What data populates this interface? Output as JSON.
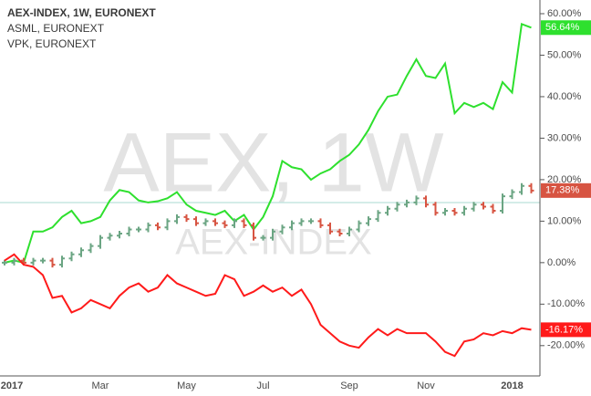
{
  "chart_data": {
    "type": "line",
    "legend": [
      "AEX-INDEX, 1W, EURONEXT",
      "ASML, EURONEXT",
      "VPK, EURONEXT"
    ],
    "watermark": "AEX, 1W",
    "watermark_symbol": "AEX-INDEX",
    "categories": [
      "2017",
      null,
      null,
      null,
      null,
      null,
      null,
      null,
      null,
      null,
      "Mar",
      null,
      null,
      null,
      null,
      null,
      null,
      null,
      null,
      "May",
      null,
      null,
      null,
      null,
      null,
      null,
      null,
      "Jul",
      null,
      null,
      null,
      null,
      null,
      null,
      null,
      null,
      "Sep",
      null,
      null,
      null,
      null,
      null,
      null,
      null,
      "Nov",
      null,
      null,
      null,
      null,
      null,
      null,
      null,
      null,
      "2018",
      null,
      null
    ],
    "series": [
      {
        "name": "ASML",
        "kind": "line",
        "color": "#2ee02e",
        "values": [
          0,
          0.5,
          0,
          7.5,
          7.5,
          8.5,
          11,
          12.5,
          9.5,
          10,
          11,
          15,
          17.5,
          17,
          15,
          14.5,
          14.8,
          15.5,
          17,
          14,
          12.5,
          12,
          11.5,
          12.5,
          10,
          11.5,
          8,
          11,
          16,
          24.5,
          23,
          22.5,
          20,
          21.5,
          22.5,
          24.5,
          26,
          28.5,
          32,
          36.5,
          40,
          40.5,
          45,
          49,
          45,
          44.5,
          48,
          36,
          38.5,
          37.5,
          38.5,
          37,
          43.5,
          41,
          57.5,
          56.64
        ],
        "value_labels": [
          null,
          null,
          null,
          null,
          null,
          null,
          null,
          null,
          null,
          null,
          null,
          null,
          null,
          null,
          null,
          null,
          null,
          null,
          null,
          null,
          null,
          null,
          null,
          null,
          null,
          null,
          null,
          null,
          null,
          null,
          null,
          null,
          null,
          null,
          null,
          null,
          null,
          null,
          null,
          null,
          null,
          null,
          null,
          null,
          null,
          null,
          null,
          null,
          null,
          null,
          null,
          null,
          null,
          null,
          null,
          "56.64%"
        ]
      },
      {
        "name": "AEX-INDEX",
        "kind": "bars",
        "color": "#6ba583",
        "down_color": "#d75442",
        "values": [
          0,
          0.5,
          0,
          0.5,
          0.5,
          -0.5,
          1,
          2,
          3,
          4,
          6,
          6.5,
          7,
          8,
          8,
          9,
          8.5,
          10,
          11,
          10.5,
          9.5,
          10,
          9.5,
          9,
          10,
          9,
          6,
          6,
          7.5,
          8.5,
          9.5,
          10,
          10,
          9,
          7.5,
          7,
          8,
          9.5,
          10.5,
          12,
          13,
          14,
          14.5,
          15.5,
          14,
          12,
          12.5,
          12,
          13,
          14,
          13.5,
          12.5,
          16,
          17,
          18.5,
          17.38
        ],
        "value_labels": [
          null,
          null,
          null,
          null,
          null,
          null,
          null,
          null,
          null,
          null,
          null,
          null,
          null,
          null,
          null,
          null,
          null,
          null,
          null,
          null,
          null,
          null,
          null,
          null,
          null,
          null,
          null,
          null,
          null,
          null,
          null,
          null,
          null,
          null,
          null,
          null,
          null,
          null,
          null,
          null,
          null,
          null,
          null,
          null,
          null,
          null,
          null,
          null,
          null,
          null,
          null,
          null,
          null,
          null,
          null,
          "17.38%"
        ]
      },
      {
        "name": "VPK",
        "kind": "line",
        "color": "#ff1a1a",
        "values": [
          0.5,
          2,
          -0.5,
          -1,
          -3,
          -8.5,
          -8,
          -12,
          -11,
          -9,
          -10,
          -11,
          -8,
          -6,
          -5,
          -7,
          -6,
          -3,
          -5,
          -6,
          -7,
          -8,
          -7.5,
          -3,
          -4,
          -8,
          -7,
          -5.5,
          -7,
          -6,
          -8,
          -6.5,
          -10,
          -15,
          -17,
          -19,
          -20,
          -20.5,
          -18,
          -16,
          -17.5,
          -16,
          -17,
          -17,
          -17,
          -19,
          -21.5,
          -22.5,
          -19,
          -18.5,
          -17,
          -17.5,
          -16.5,
          -17,
          -15.8,
          -16.17
        ],
        "value_labels": [
          null,
          null,
          null,
          null,
          null,
          null,
          null,
          null,
          null,
          null,
          null,
          null,
          null,
          null,
          null,
          null,
          null,
          null,
          null,
          null,
          null,
          null,
          null,
          null,
          null,
          null,
          null,
          null,
          null,
          null,
          null,
          null,
          null,
          null,
          null,
          null,
          null,
          null,
          null,
          null,
          null,
          null,
          null,
          null,
          null,
          null,
          null,
          null,
          null,
          null,
          null,
          null,
          null,
          null,
          null,
          "-16.17%"
        ]
      }
    ],
    "ylim": [
      -27.3,
      63.3
    ],
    "yticks": [
      {
        "value": 60,
        "label": "60.00%"
      },
      {
        "value": 50,
        "label": "50.00%"
      },
      {
        "value": 40,
        "label": "40.00%"
      },
      {
        "value": 30,
        "label": "30.00%"
      },
      {
        "value": 20,
        "label": "20.00%"
      },
      {
        "value": 10,
        "label": "10.00%"
      },
      {
        "value": 0,
        "label": "0.00%"
      },
      {
        "value": -10,
        "label": "-10.00%"
      },
      {
        "value": -20,
        "label": "-20.00%"
      }
    ]
  }
}
